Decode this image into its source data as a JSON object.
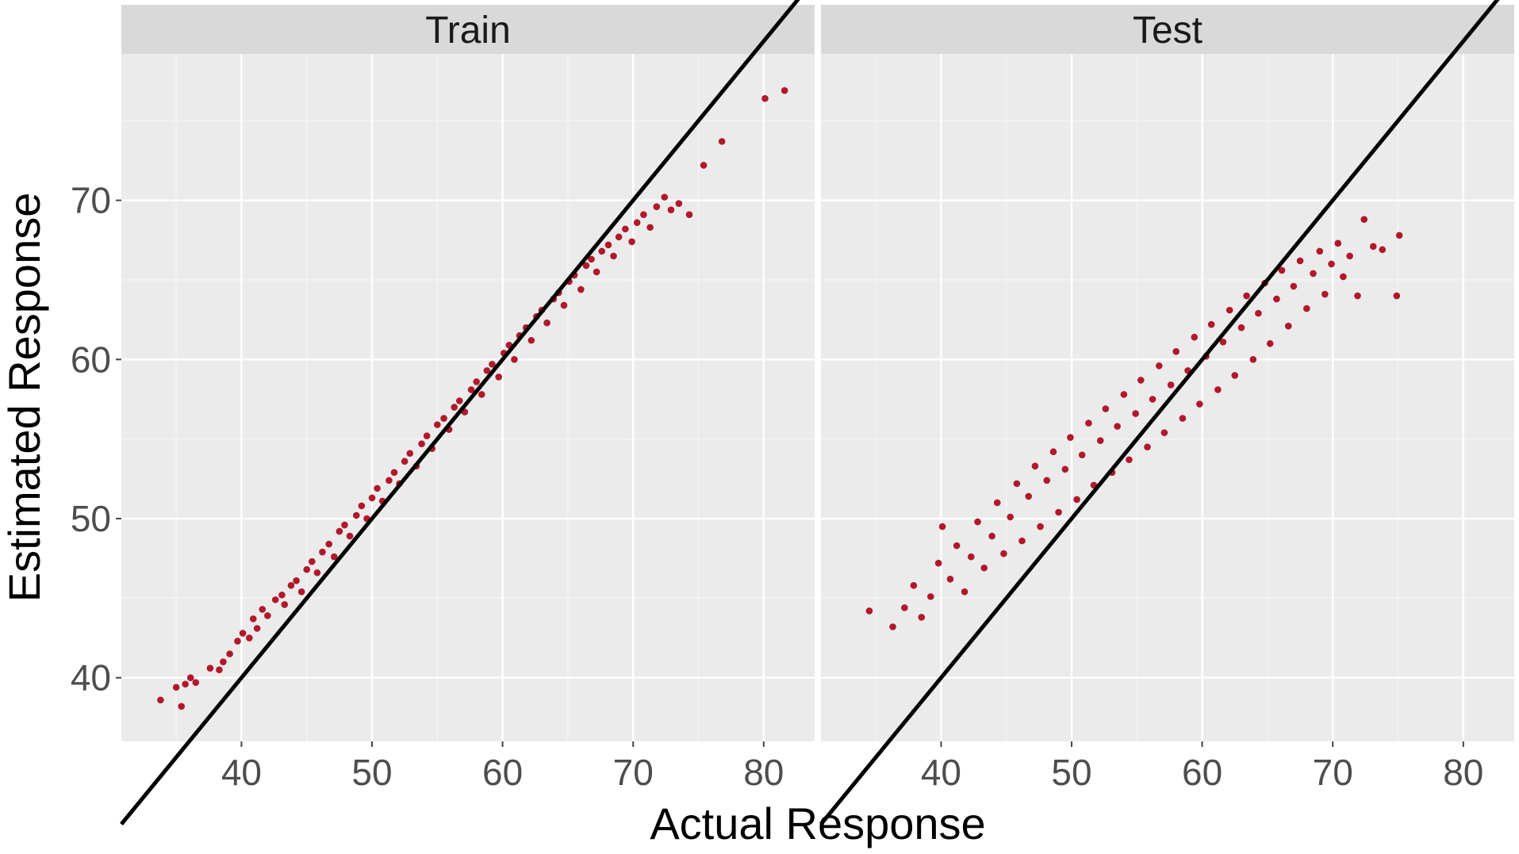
{
  "chart_data": {
    "type": "scatter",
    "xlabel": "Actual Response",
    "ylabel": "Estimated Response",
    "xlim": [
      30.8,
      83.9
    ],
    "ylim": [
      36.0,
      79.2
    ],
    "x_ticks": [
      40,
      50,
      60,
      70,
      80
    ],
    "y_ticks": [
      40,
      50,
      60,
      70
    ],
    "grid": true,
    "point_color": "#b2182b",
    "reference_line": {
      "type": "identity",
      "slope": 1,
      "intercept": 0,
      "color": "#000000"
    },
    "panels": [
      {
        "title": "Train",
        "points": [
          [
            33.8,
            38.6
          ],
          [
            35.4,
            38.2
          ],
          [
            35.0,
            39.4
          ],
          [
            35.7,
            39.6
          ],
          [
            36.1,
            40.0
          ],
          [
            36.5,
            39.7
          ],
          [
            37.6,
            40.6
          ],
          [
            38.3,
            40.5
          ],
          [
            38.6,
            41.0
          ],
          [
            39.1,
            41.5
          ],
          [
            39.7,
            42.3
          ],
          [
            40.1,
            42.8
          ],
          [
            40.6,
            42.5
          ],
          [
            40.9,
            43.7
          ],
          [
            41.2,
            43.1
          ],
          [
            41.6,
            44.3
          ],
          [
            42.0,
            43.9
          ],
          [
            42.6,
            44.9
          ],
          [
            43.1,
            45.2
          ],
          [
            43.3,
            44.6
          ],
          [
            43.8,
            45.8
          ],
          [
            44.2,
            46.1
          ],
          [
            44.6,
            45.4
          ],
          [
            45.0,
            46.8
          ],
          [
            45.4,
            47.3
          ],
          [
            45.8,
            46.6
          ],
          [
            46.2,
            47.9
          ],
          [
            46.7,
            48.4
          ],
          [
            47.1,
            47.6
          ],
          [
            47.5,
            49.2
          ],
          [
            47.9,
            49.6
          ],
          [
            48.3,
            48.9
          ],
          [
            48.8,
            50.2
          ],
          [
            49.2,
            50.8
          ],
          [
            49.6,
            50.0
          ],
          [
            50.0,
            51.3
          ],
          [
            50.4,
            51.9
          ],
          [
            50.8,
            51.1
          ],
          [
            51.3,
            52.4
          ],
          [
            51.7,
            52.9
          ],
          [
            52.1,
            52.2
          ],
          [
            52.5,
            53.6
          ],
          [
            52.9,
            54.1
          ],
          [
            53.4,
            53.3
          ],
          [
            53.8,
            54.7
          ],
          [
            54.2,
            55.2
          ],
          [
            54.6,
            54.4
          ],
          [
            55.0,
            55.9
          ],
          [
            55.5,
            56.3
          ],
          [
            55.9,
            55.6
          ],
          [
            56.3,
            57.0
          ],
          [
            56.7,
            57.4
          ],
          [
            57.1,
            56.7
          ],
          [
            57.6,
            58.1
          ],
          [
            58.0,
            58.6
          ],
          [
            58.4,
            57.8
          ],
          [
            58.8,
            59.3
          ],
          [
            59.2,
            59.7
          ],
          [
            59.7,
            58.9
          ],
          [
            60.1,
            60.4
          ],
          [
            60.5,
            60.9
          ],
          [
            60.9,
            60.0
          ],
          [
            61.3,
            61.5
          ],
          [
            61.8,
            62.0
          ],
          [
            62.2,
            61.2
          ],
          [
            62.6,
            62.7
          ],
          [
            63.0,
            63.1
          ],
          [
            63.4,
            62.3
          ],
          [
            63.9,
            63.8
          ],
          [
            64.3,
            64.2
          ],
          [
            64.7,
            63.4
          ],
          [
            65.1,
            64.9
          ],
          [
            65.5,
            65.3
          ],
          [
            66.0,
            64.4
          ],
          [
            66.4,
            65.9
          ],
          [
            66.8,
            66.3
          ],
          [
            67.2,
            65.5
          ],
          [
            67.6,
            66.8
          ],
          [
            68.1,
            67.2
          ],
          [
            68.5,
            66.5
          ],
          [
            68.9,
            67.7
          ],
          [
            69.4,
            68.2
          ],
          [
            69.9,
            67.4
          ],
          [
            70.3,
            68.6
          ],
          [
            70.8,
            69.1
          ],
          [
            71.3,
            68.3
          ],
          [
            71.8,
            69.6
          ],
          [
            72.4,
            70.2
          ],
          [
            72.9,
            69.4
          ],
          [
            73.5,
            69.8
          ],
          [
            74.3,
            69.1
          ],
          [
            75.4,
            72.2
          ],
          [
            76.8,
            73.7
          ],
          [
            80.1,
            76.4
          ],
          [
            81.6,
            76.9
          ]
        ]
      },
      {
        "title": "Test",
        "points": [
          [
            34.5,
            44.2
          ],
          [
            36.3,
            43.2
          ],
          [
            37.2,
            44.4
          ],
          [
            37.9,
            45.8
          ],
          [
            38.5,
            43.8
          ],
          [
            39.2,
            45.1
          ],
          [
            39.8,
            47.2
          ],
          [
            40.1,
            49.5
          ],
          [
            40.7,
            46.2
          ],
          [
            41.2,
            48.3
          ],
          [
            41.8,
            45.4
          ],
          [
            42.3,
            47.6
          ],
          [
            42.8,
            49.8
          ],
          [
            43.3,
            46.9
          ],
          [
            43.9,
            48.9
          ],
          [
            44.3,
            51.0
          ],
          [
            44.8,
            47.8
          ],
          [
            45.3,
            50.1
          ],
          [
            45.8,
            52.2
          ],
          [
            46.2,
            48.6
          ],
          [
            46.7,
            51.4
          ],
          [
            47.2,
            53.3
          ],
          [
            47.6,
            49.5
          ],
          [
            48.1,
            52.4
          ],
          [
            48.6,
            54.2
          ],
          [
            49.0,
            50.4
          ],
          [
            49.5,
            53.1
          ],
          [
            49.9,
            55.1
          ],
          [
            50.4,
            51.2
          ],
          [
            50.8,
            54.0
          ],
          [
            51.3,
            56.0
          ],
          [
            51.7,
            52.1
          ],
          [
            52.2,
            54.9
          ],
          [
            52.6,
            56.9
          ],
          [
            53.1,
            52.9
          ],
          [
            53.5,
            55.8
          ],
          [
            54.0,
            57.8
          ],
          [
            54.4,
            53.7
          ],
          [
            54.9,
            56.6
          ],
          [
            55.3,
            58.7
          ],
          [
            55.8,
            54.5
          ],
          [
            56.2,
            57.5
          ],
          [
            56.7,
            59.6
          ],
          [
            57.1,
            55.4
          ],
          [
            57.6,
            58.4
          ],
          [
            58.0,
            60.5
          ],
          [
            58.5,
            56.3
          ],
          [
            58.9,
            59.3
          ],
          [
            59.4,
            61.4
          ],
          [
            59.8,
            57.2
          ],
          [
            60.3,
            60.2
          ],
          [
            60.7,
            62.2
          ],
          [
            61.2,
            58.1
          ],
          [
            61.6,
            61.1
          ],
          [
            62.1,
            63.1
          ],
          [
            62.5,
            59.0
          ],
          [
            63.0,
            62.0
          ],
          [
            63.4,
            64.0
          ],
          [
            63.9,
            60.0
          ],
          [
            64.3,
            62.9
          ],
          [
            64.8,
            64.8
          ],
          [
            65.2,
            61.0
          ],
          [
            65.7,
            63.8
          ],
          [
            66.1,
            65.6
          ],
          [
            66.6,
            62.1
          ],
          [
            67.0,
            64.6
          ],
          [
            67.5,
            66.2
          ],
          [
            68.0,
            63.2
          ],
          [
            68.5,
            65.4
          ],
          [
            69.0,
            66.8
          ],
          [
            69.4,
            64.1
          ],
          [
            69.9,
            66.0
          ],
          [
            70.4,
            67.3
          ],
          [
            70.8,
            65.2
          ],
          [
            71.3,
            66.5
          ],
          [
            71.9,
            64.0
          ],
          [
            72.4,
            68.8
          ],
          [
            73.1,
            67.1
          ],
          [
            73.8,
            66.9
          ],
          [
            74.9,
            64.0
          ],
          [
            75.1,
            67.8
          ]
        ]
      }
    ]
  }
}
